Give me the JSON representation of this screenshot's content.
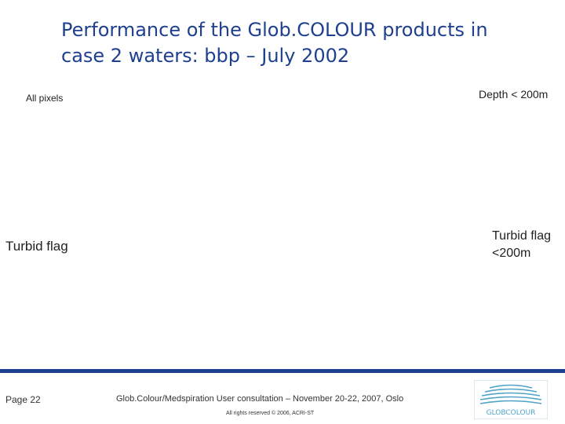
{
  "slide": {
    "title_line1": "Performance of the Glob.COLOUR products in",
    "title_line2": "case 2 waters: bbp – July 2002",
    "labels": {
      "all_pixels": "All pixels",
      "depth": "Depth < 200m",
      "turbid_flag": "Turbid flag",
      "turbid_flag_200_line1": "Turbid flag",
      "turbid_flag_200_line2": "<200m"
    }
  },
  "footer": {
    "page": "Page 22",
    "event": "Glob.Colour/Medspiration User consultation – November 20-22, 2007, Oslo",
    "rights": "All rights reserved © 2006, ACRI-ST",
    "logo_text": "GLOBCOLOUR"
  },
  "colors": {
    "title": "#1f3f8f",
    "footer_bar": "#1f3f8f",
    "logo_waves": "#4fa3c7"
  }
}
